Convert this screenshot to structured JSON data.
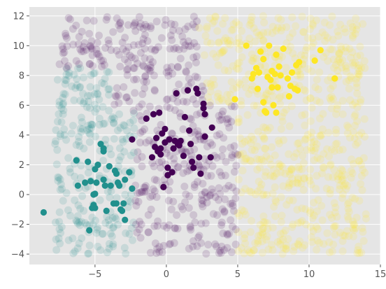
{
  "chart_data": {
    "type": "scatter",
    "title": "",
    "xlabel": "",
    "ylabel": "",
    "xlim": [
      -9.6,
      15.0
    ],
    "ylim": [
      -4.7,
      12.6
    ],
    "xticks": [
      -5,
      0,
      5,
      10,
      15
    ],
    "yticks": [
      -4,
      -2,
      0,
      2,
      4,
      6,
      8,
      10,
      12
    ],
    "xtick_labels": [
      "−5",
      "0",
      "5",
      "10",
      "15"
    ],
    "ytick_labels": [
      "−4",
      "−2",
      "0",
      "2",
      "4",
      "6",
      "8",
      "10",
      "12"
    ],
    "grid": true,
    "style": "ggplot",
    "background_color": "#e5e5e5",
    "grid_color": "#ffffff",
    "background_points": {
      "description_only": false,
      "x_range": [
        -7.8,
        14.0
      ],
      "y_range": [
        -4.0,
        12.0
      ],
      "count": 1400,
      "opacity": 0.15,
      "colors": {
        "teal": "#21908d",
        "purple": "#440154",
        "yellow": "#fde725"
      }
    },
    "series": [
      {
        "color": "#21908d",
        "points": [
          [
            -8.6,
            -1.2
          ],
          [
            -6.3,
            2.3
          ],
          [
            -6.2,
            0.6
          ],
          [
            -5.7,
            0.8
          ],
          [
            -5.5,
            2.2
          ],
          [
            -5.4,
            -2.4
          ],
          [
            -5.3,
            0.9
          ],
          [
            -5.2,
            -0.9
          ],
          [
            -5.1,
            -0.7
          ],
          [
            -5.0,
            -0.9
          ],
          [
            -5.1,
            0.0
          ],
          [
            -5.0,
            0.05
          ],
          [
            -5.0,
            1.7
          ],
          [
            -4.8,
            2.0
          ],
          [
            -4.6,
            3.4
          ],
          [
            -4.4,
            3.1
          ],
          [
            -4.4,
            2.9
          ],
          [
            -4.4,
            1.0
          ],
          [
            -4.3,
            0.6
          ],
          [
            -4.2,
            -1.1
          ],
          [
            -4.0,
            1.9
          ],
          [
            -3.9,
            0.6
          ],
          [
            -3.6,
            1.6
          ],
          [
            -3.5,
            1.4
          ],
          [
            -3.5,
            -0.6
          ],
          [
            -3.4,
            0.8
          ],
          [
            -3.3,
            0.6
          ],
          [
            -3.2,
            -1.0
          ],
          [
            -3.1,
            -1.1
          ],
          [
            -3.0,
            -0.6
          ],
          [
            -2.9,
            1.0
          ],
          [
            -2.9,
            -1.7
          ],
          [
            -2.6,
            1.5
          ],
          [
            -2.4,
            0.4
          ],
          [
            -3.7,
            -0.6
          ],
          [
            -4.9,
            0.8
          ]
        ]
      },
      {
        "color": "#440154",
        "points": [
          [
            -2.4,
            3.7
          ],
          [
            -1.4,
            5.1
          ],
          [
            -1.0,
            2.5
          ],
          [
            -0.9,
            5.4
          ],
          [
            -0.8,
            3.2
          ],
          [
            -0.7,
            3.8
          ],
          [
            -0.6,
            2.9
          ],
          [
            -0.5,
            5.5
          ],
          [
            -0.4,
            3.1
          ],
          [
            -0.4,
            2.7
          ],
          [
            -0.3,
            4.1
          ],
          [
            -0.2,
            0.5
          ],
          [
            -0.1,
            3.5
          ],
          [
            -0.1,
            4.4
          ],
          [
            0.1,
            1.3
          ],
          [
            0.1,
            1.8
          ],
          [
            0.2,
            3.7
          ],
          [
            0.4,
            1.5
          ],
          [
            0.5,
            3.1
          ],
          [
            0.6,
            3.6
          ],
          [
            0.7,
            6.8
          ],
          [
            0.8,
            3.4
          ],
          [
            0.9,
            3.3
          ],
          [
            1.0,
            3.6
          ],
          [
            1.2,
            2.6
          ],
          [
            1.3,
            5.2
          ],
          [
            1.5,
            7.0
          ],
          [
            1.6,
            4.3
          ],
          [
            1.7,
            3.4
          ],
          [
            1.8,
            2.2
          ],
          [
            1.9,
            1.8
          ],
          [
            2.1,
            7.1
          ],
          [
            2.2,
            6.8
          ],
          [
            2.3,
            2.5
          ],
          [
            2.4,
            1.4
          ],
          [
            2.6,
            6.1
          ],
          [
            2.6,
            5.8
          ],
          [
            2.7,
            3.9
          ],
          [
            2.7,
            5.4
          ],
          [
            3.1,
            2.5
          ],
          [
            3.2,
            4.5
          ]
        ]
      },
      {
        "color": "#fde725",
        "points": [
          [
            4.8,
            6.4
          ],
          [
            5.6,
            10.0
          ],
          [
            6.0,
            7.8
          ],
          [
            6.1,
            8.1
          ],
          [
            6.3,
            8.5
          ],
          [
            6.4,
            7.1
          ],
          [
            6.5,
            8.2
          ],
          [
            6.6,
            9.6
          ],
          [
            6.8,
            9.1
          ],
          [
            6.8,
            6.2
          ],
          [
            6.9,
            5.6
          ],
          [
            7.0,
            5.5
          ],
          [
            7.1,
            7.9
          ],
          [
            7.2,
            10.0
          ],
          [
            7.3,
            7.7
          ],
          [
            7.4,
            7.2
          ],
          [
            7.4,
            8.3
          ],
          [
            7.5,
            6.0
          ],
          [
            7.6,
            8.1
          ],
          [
            7.7,
            9.4
          ],
          [
            7.7,
            5.5
          ],
          [
            7.8,
            7.2
          ],
          [
            7.9,
            8.6
          ],
          [
            8.0,
            8.0
          ],
          [
            8.2,
            9.8
          ],
          [
            8.5,
            7.8
          ],
          [
            8.6,
            6.6
          ],
          [
            8.7,
            7.3
          ],
          [
            8.8,
            8.2
          ],
          [
            9.0,
            7.1
          ],
          [
            9.1,
            8.7
          ],
          [
            9.3,
            8.9
          ],
          [
            9.2,
            7.0
          ],
          [
            10.4,
            9.0
          ],
          [
            10.8,
            9.7
          ],
          [
            11.8,
            7.8
          ]
        ]
      }
    ]
  }
}
